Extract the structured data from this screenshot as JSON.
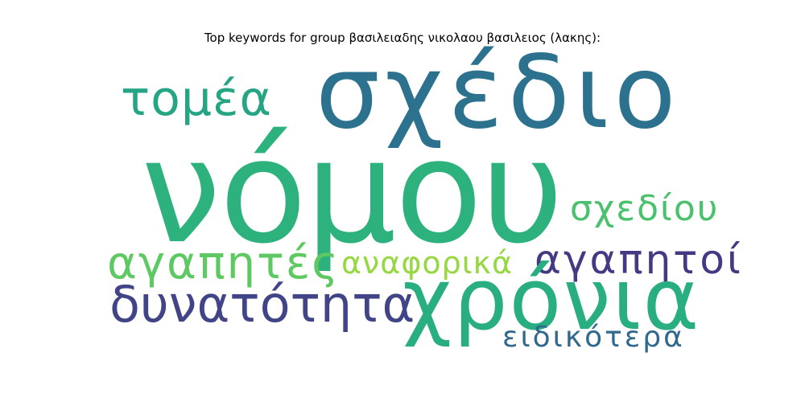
{
  "title": "Top keywords for group βασιλειαδης νικολαου βασιλειος (λακης):",
  "words": [
    {
      "id": "nomou",
      "text": "νόμου",
      "color": "#2db27d"
    },
    {
      "id": "schedio",
      "text": "σχέδιο",
      "color": "#2c728e"
    },
    {
      "id": "chronia",
      "text": "χρόνια",
      "color": "#28ae80"
    },
    {
      "id": "toméa",
      "text": "τομέα",
      "color": "#25a584"
    },
    {
      "id": "agapites",
      "text": "αγαπητές",
      "color": "#5ec962"
    },
    {
      "id": "dynatotita",
      "text": "δυνατότητα",
      "color": "#414487"
    },
    {
      "id": "schediou",
      "text": "σχεδίου",
      "color": "#4ac16d"
    },
    {
      "id": "anaforika",
      "text": "αναφορικά",
      "color": "#95d840"
    },
    {
      "id": "agapitoi",
      "text": "αγαπητοί",
      "color": "#443983"
    },
    {
      "id": "eidikotera",
      "text": "ειδικότερα",
      "color": "#31688e"
    }
  ]
}
